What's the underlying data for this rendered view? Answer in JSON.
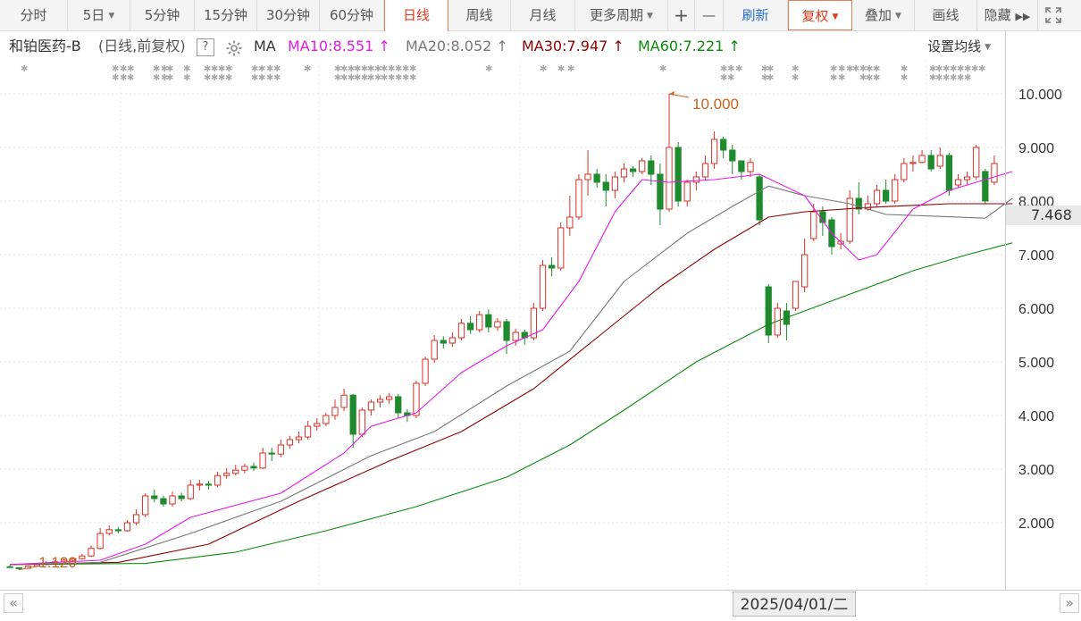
{
  "toolbar": {
    "items": [
      "分时",
      "5日",
      "5分钟",
      "15分钟",
      "30分钟",
      "60分钟",
      "日线",
      "周线",
      "月线",
      "更多周期",
      "+",
      "—",
      "刷新",
      "复权",
      "叠加",
      "画线",
      "隐藏"
    ],
    "active": "日线",
    "fullscreen_icon": "expand-icon",
    "more_icon": "double-chevron-right-icon"
  },
  "info": {
    "stock_name": "和铂医药-B",
    "mode": "(日线,前复权)",
    "help": "?",
    "gear_icon": "gear-icon",
    "ma_label": "MA",
    "ma10": "MA10:8.551",
    "ma20": "MA20:8.052",
    "ma30": "MA30:7.947",
    "ma60": "MA60:7.221",
    "arrow": "↑",
    "set_ma": "设置均线",
    "colors": {
      "ma10": "#e619e6",
      "ma20": "#777777",
      "ma30": "#8b0000",
      "ma60": "#0a8a0a",
      "up": "#d93025",
      "down": "#1f8a2e"
    }
  },
  "axis": {
    "y_labels": [
      "10.000",
      "9.000",
      "8.000",
      "7.000",
      "6.000",
      "5.000",
      "4.000",
      "3.000",
      "2.000"
    ],
    "current_price": "7.468",
    "date": "2025/04/01/二"
  },
  "annotations": {
    "high": "10.000",
    "low": "1.120"
  },
  "chart_data": {
    "type": "candlestick",
    "ylim": [
      1.1,
      10.4
    ],
    "high_label": 10.0,
    "low_label": 1.12,
    "candles": [
      [
        1.18,
        1.17,
        1.16,
        1.21
      ],
      [
        1.16,
        1.15,
        1.12,
        1.17
      ],
      [
        1.15,
        1.19,
        1.14,
        1.2
      ],
      [
        1.19,
        1.22,
        1.18,
        1.24
      ],
      [
        1.22,
        1.25,
        1.21,
        1.28
      ],
      [
        1.25,
        1.27,
        1.23,
        1.3
      ],
      [
        1.27,
        1.3,
        1.25,
        1.33
      ],
      [
        1.3,
        1.33,
        1.28,
        1.36
      ],
      [
        1.33,
        1.38,
        1.31,
        1.42
      ],
      [
        1.38,
        1.52,
        1.36,
        1.58
      ],
      [
        1.52,
        1.8,
        1.5,
        1.9
      ],
      [
        1.8,
        1.87,
        1.76,
        1.95
      ],
      [
        1.87,
        1.85,
        1.8,
        1.92
      ],
      [
        1.85,
        2.0,
        1.83,
        2.05
      ],
      [
        2.0,
        2.15,
        1.95,
        2.25
      ],
      [
        2.15,
        2.5,
        2.1,
        2.55
      ],
      [
        2.5,
        2.45,
        2.38,
        2.62
      ],
      [
        2.45,
        2.35,
        2.3,
        2.5
      ],
      [
        2.35,
        2.5,
        2.3,
        2.58
      ],
      [
        2.5,
        2.45,
        2.4,
        2.56
      ],
      [
        2.45,
        2.7,
        2.42,
        2.8
      ],
      [
        2.7,
        2.72,
        2.6,
        2.8
      ],
      [
        2.72,
        2.7,
        2.62,
        2.78
      ],
      [
        2.7,
        2.88,
        2.66,
        2.95
      ],
      [
        2.88,
        2.92,
        2.82,
        3.02
      ],
      [
        2.92,
        2.98,
        2.88,
        3.08
      ],
      [
        2.98,
        3.05,
        2.92,
        3.1
      ],
      [
        3.05,
        3.02,
        2.96,
        3.12
      ],
      [
        3.02,
        3.3,
        3.0,
        3.4
      ],
      [
        3.3,
        3.28,
        3.15,
        3.4
      ],
      [
        3.28,
        3.45,
        3.22,
        3.55
      ],
      [
        3.45,
        3.55,
        3.38,
        3.62
      ],
      [
        3.55,
        3.6,
        3.48,
        3.7
      ],
      [
        3.6,
        3.8,
        3.55,
        3.9
      ],
      [
        3.8,
        3.85,
        3.72,
        3.95
      ],
      [
        3.85,
        4.0,
        3.8,
        4.05
      ],
      [
        4.0,
        4.15,
        3.92,
        4.3
      ],
      [
        4.15,
        4.38,
        4.08,
        4.5
      ],
      [
        4.38,
        3.65,
        3.4,
        4.4
      ],
      [
        3.65,
        4.1,
        3.6,
        4.15
      ],
      [
        4.1,
        4.25,
        4.0,
        4.3
      ],
      [
        4.25,
        4.3,
        4.15,
        4.38
      ],
      [
        4.3,
        4.35,
        4.22,
        4.42
      ],
      [
        4.35,
        4.05,
        3.95,
        4.4
      ],
      [
        4.05,
        4.0,
        3.88,
        4.12
      ],
      [
        4.0,
        4.6,
        3.95,
        4.65
      ],
      [
        4.6,
        5.05,
        4.55,
        5.1
      ],
      [
        5.05,
        5.4,
        4.98,
        5.5
      ],
      [
        5.4,
        5.35,
        5.25,
        5.48
      ],
      [
        5.35,
        5.45,
        5.28,
        5.55
      ],
      [
        5.45,
        5.72,
        5.4,
        5.8
      ],
      [
        5.72,
        5.6,
        5.52,
        5.85
      ],
      [
        5.6,
        5.88,
        5.55,
        5.95
      ],
      [
        5.88,
        5.65,
        5.55,
        5.98
      ],
      [
        5.65,
        5.75,
        5.58,
        5.82
      ],
      [
        5.75,
        5.4,
        5.15,
        5.8
      ],
      [
        5.4,
        5.55,
        5.3,
        5.62
      ],
      [
        5.55,
        5.45,
        5.32,
        5.6
      ],
      [
        5.45,
        6.0,
        5.4,
        6.1
      ],
      [
        6.0,
        6.8,
        5.95,
        6.9
      ],
      [
        6.8,
        6.75,
        6.6,
        6.95
      ],
      [
        6.75,
        7.5,
        6.7,
        7.6
      ],
      [
        7.5,
        7.7,
        7.35,
        8.1
      ],
      [
        7.7,
        8.4,
        7.65,
        8.5
      ],
      [
        8.4,
        8.5,
        8.1,
        8.95
      ],
      [
        8.5,
        8.35,
        8.25,
        8.6
      ],
      [
        8.35,
        8.2,
        7.9,
        8.5
      ],
      [
        8.2,
        8.45,
        8.05,
        8.55
      ],
      [
        8.45,
        8.6,
        8.35,
        8.7
      ],
      [
        8.6,
        8.55,
        8.45,
        8.65
      ],
      [
        8.55,
        8.75,
        8.5,
        8.8
      ],
      [
        8.75,
        8.5,
        8.3,
        8.85
      ],
      [
        8.5,
        7.85,
        7.55,
        8.7
      ],
      [
        7.85,
        9.0,
        7.8,
        10.0
      ],
      [
        9.0,
        8.0,
        7.9,
        9.1
      ],
      [
        8.0,
        8.35,
        7.9,
        8.4
      ],
      [
        8.35,
        8.45,
        8.2,
        8.55
      ],
      [
        8.45,
        8.7,
        8.4,
        8.85
      ],
      [
        8.7,
        9.15,
        8.6,
        9.3
      ],
      [
        9.15,
        8.95,
        8.8,
        9.2
      ],
      [
        8.95,
        8.75,
        8.5,
        9.05
      ],
      [
        8.75,
        8.55,
        8.4,
        8.7
      ],
      [
        8.55,
        8.72,
        8.45,
        8.8
      ],
      [
        8.45,
        7.65,
        7.55,
        8.5
      ],
      [
        6.4,
        5.5,
        5.35,
        6.45
      ],
      [
        5.5,
        6.0,
        5.45,
        6.1
      ],
      [
        5.95,
        5.7,
        5.4,
        6.1
      ],
      [
        6.0,
        6.5,
        5.95,
        6.5
      ],
      [
        6.4,
        7.0,
        6.3,
        7.3
      ],
      [
        7.3,
        7.8,
        7.25,
        7.95
      ],
      [
        7.8,
        7.6,
        7.35,
        7.9
      ],
      [
        7.65,
        7.15,
        7.0,
        7.7
      ],
      [
        7.2,
        7.25,
        7.1,
        7.4
      ],
      [
        7.25,
        8.05,
        7.2,
        8.2
      ],
      [
        8.05,
        7.85,
        7.75,
        8.35
      ],
      [
        7.85,
        7.95,
        7.82,
        8.1
      ],
      [
        7.95,
        8.2,
        7.9,
        8.3
      ],
      [
        8.2,
        8.0,
        7.95,
        8.4
      ],
      [
        8.0,
        8.4,
        7.95,
        8.5
      ],
      [
        8.4,
        8.7,
        8.35,
        8.8
      ],
      [
        8.7,
        8.72,
        8.55,
        8.85
      ],
      [
        8.72,
        8.85,
        8.7,
        8.95
      ],
      [
        8.85,
        8.6,
        8.55,
        8.95
      ],
      [
        8.65,
        8.85,
        8.6,
        9.0
      ],
      [
        8.85,
        8.2,
        8.1,
        8.9
      ],
      [
        8.3,
        8.4,
        8.25,
        8.5
      ],
      [
        8.4,
        8.45,
        8.3,
        8.55
      ],
      [
        8.45,
        9.0,
        8.4,
        9.05
      ],
      [
        8.55,
        8.0,
        7.95,
        8.6
      ],
      [
        8.35,
        8.7,
        8.3,
        8.85
      ]
    ],
    "ma10": [
      [
        0,
        1.22
      ],
      [
        10,
        1.3
      ],
      [
        15,
        1.6
      ],
      [
        20,
        2.1
      ],
      [
        30,
        2.55
      ],
      [
        37,
        3.3
      ],
      [
        40,
        3.8
      ],
      [
        45,
        4.05
      ],
      [
        50,
        4.8
      ],
      [
        55,
        5.3
      ],
      [
        59,
        5.6
      ],
      [
        63,
        6.5
      ],
      [
        67,
        7.8
      ],
      [
        70,
        8.4
      ],
      [
        73,
        8.35
      ],
      [
        78,
        8.4
      ],
      [
        83,
        8.5
      ],
      [
        88,
        8.1
      ],
      [
        91,
        7.4
      ],
      [
        94,
        6.9
      ],
      [
        96,
        7.0
      ],
      [
        100,
        7.85
      ],
      [
        104,
        8.2
      ],
      [
        108,
        8.4
      ],
      [
        111,
        8.55
      ]
    ],
    "ma20": [
      [
        0,
        1.22
      ],
      [
        10,
        1.26
      ],
      [
        20,
        1.8
      ],
      [
        30,
        2.4
      ],
      [
        40,
        3.25
      ],
      [
        47,
        3.7
      ],
      [
        55,
        4.55
      ],
      [
        62,
        5.2
      ],
      [
        68,
        6.5
      ],
      [
        75,
        7.4
      ],
      [
        80,
        7.9
      ],
      [
        84,
        8.28
      ],
      [
        88,
        8.1
      ],
      [
        93,
        7.95
      ],
      [
        97,
        7.75
      ],
      [
        102,
        7.72
      ],
      [
        108,
        7.68
      ],
      [
        111,
        8.05
      ]
    ],
    "ma30": [
      [
        0,
        1.22
      ],
      [
        12,
        1.26
      ],
      [
        22,
        1.6
      ],
      [
        32,
        2.4
      ],
      [
        42,
        3.15
      ],
      [
        50,
        3.7
      ],
      [
        58,
        4.5
      ],
      [
        65,
        5.45
      ],
      [
        72,
        6.4
      ],
      [
        78,
        7.1
      ],
      [
        84,
        7.7
      ],
      [
        88,
        7.8
      ],
      [
        95,
        7.88
      ],
      [
        104,
        7.95
      ],
      [
        111,
        7.95
      ]
    ],
    "ma60": [
      [
        0,
        1.22
      ],
      [
        15,
        1.24
      ],
      [
        25,
        1.45
      ],
      [
        35,
        1.85
      ],
      [
        45,
        2.3
      ],
      [
        55,
        2.85
      ],
      [
        62,
        3.45
      ],
      [
        68,
        4.1
      ],
      [
        76,
        5.0
      ],
      [
        84,
        5.7
      ],
      [
        92,
        6.2
      ],
      [
        100,
        6.7
      ],
      [
        106,
        7.0
      ],
      [
        111,
        7.22
      ]
    ],
    "marker_rows": [
      [
        27,
        129,
        138,
        146,
        175,
        184,
        190,
        209,
        232,
        240,
        248,
        256,
        285,
        293,
        302,
        310,
        344,
        378,
        385,
        393,
        400,
        408,
        415,
        423,
        430,
        438,
        446,
        454,
        462,
        547,
        608,
        628,
        639,
        742,
        810,
        818,
        827,
        856,
        862,
        890,
        933,
        942,
        951,
        958,
        966,
        973,
        981,
        1012,
        1044,
        1051,
        1059,
        1067,
        1075,
        1083,
        1091,
        1099
      ],
      [
        129,
        138,
        146,
        175,
        184,
        190,
        209,
        232,
        240,
        248,
        256,
        285,
        293,
        302,
        310,
        378,
        385,
        393,
        400,
        408,
        415,
        423,
        430,
        438,
        446,
        454,
        462,
        810,
        818,
        856,
        862,
        890,
        933,
        942,
        966,
        973,
        981,
        1012,
        1044,
        1051,
        1059,
        1067,
        1075,
        1083
      ]
    ]
  }
}
